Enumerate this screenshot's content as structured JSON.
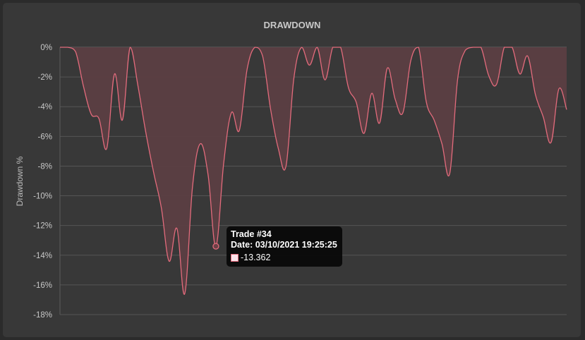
{
  "chart_data": {
    "type": "area",
    "title": "DRAWDOWN",
    "xlabel": "",
    "ylabel": "Drawdown %",
    "ylim": [
      -18,
      0
    ],
    "y_ticks": [
      "0%",
      "-2%",
      "-4%",
      "-6%",
      "-8%",
      "-10%",
      "-12%",
      "-14%",
      "-16%",
      "-18%"
    ],
    "grid": true,
    "line_color": "#e36b7c",
    "fill_color": "#5b3e42",
    "series": [
      {
        "values": [
          0,
          0,
          -0.3,
          -2.6,
          -4.5,
          -4.8,
          -6.8,
          -1.8,
          -4.9,
          0,
          -2.6,
          -5.7,
          -8.4,
          -10.8,
          -14.4,
          -12.2,
          -16.6,
          -9.4,
          -6.5,
          -8.6,
          -13.4,
          -7.8,
          -4.4,
          -5.6,
          -1.5,
          0,
          -0.6,
          -4.1,
          -6.8,
          -8.0,
          -2.1,
          0,
          -1.2,
          0,
          -2.2,
          0,
          0,
          -2.7,
          -3.7,
          -5.8,
          -3.1,
          -5.1,
          -1.4,
          -3.5,
          -4.4,
          -0.9,
          0,
          -3.7,
          -4.9,
          -6.5,
          -8.5,
          -2.2,
          -0.2,
          0,
          0,
          -1.9,
          -2.5,
          0,
          0,
          -1.8,
          -0.6,
          -3.2,
          -4.7,
          -6.4,
          -2.8,
          -4.2
        ]
      }
    ],
    "tooltip": {
      "title": "Trade #34",
      "date": "Date: 03/10/2021 19:25:25",
      "value": "-13.362",
      "point_index": 20
    }
  }
}
